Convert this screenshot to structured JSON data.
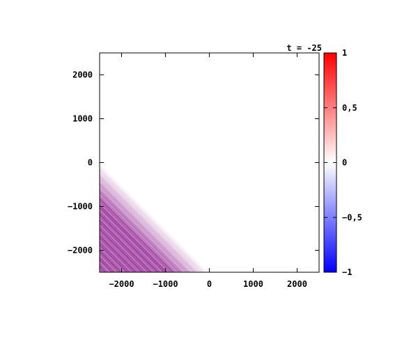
{
  "chart_data": {
    "type": "heatmap",
    "title": "t = -25",
    "xlabel": "",
    "ylabel": "",
    "xlim": [
      -2500,
      2500
    ],
    "ylim": [
      -2500,
      2500
    ],
    "xticks": [
      -2000,
      -1000,
      0,
      1000,
      2000
    ],
    "yticks": [
      -2000,
      -1000,
      0,
      1000,
      2000
    ],
    "xtick_labels": [
      "−2000",
      "−1000",
      "0",
      "1000",
      "2000"
    ],
    "ytick_labels": [
      "−2000",
      "−1000",
      "0",
      "1000",
      "2000"
    ],
    "colorbar": {
      "range": [
        -1,
        1
      ],
      "ticks": [
        -1,
        -0.5,
        0,
        0.5,
        1
      ],
      "tick_labels": [
        "−1",
        "−0,5",
        "0",
        "0,5",
        "1"
      ],
      "colors": {
        "min": "#0000ff",
        "mid": "#ffffff",
        "max": "#ff0000"
      }
    },
    "field": {
      "description_values": "plane wave oscillating between -1 and 1 along diagonal direction, amplitude vanishing beyond the front x + y = -2500",
      "wavelength": 70,
      "front_offset": -2500,
      "front_width": 900,
      "max_amplitude": 1
    },
    "grid": false,
    "legend": "right"
  }
}
